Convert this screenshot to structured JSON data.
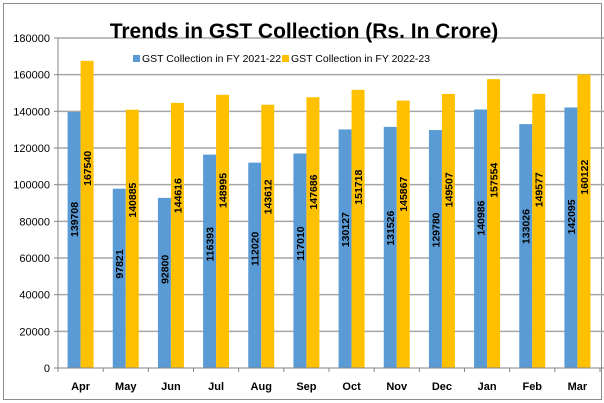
{
  "chart_data": {
    "type": "bar",
    "title": "Trends in GST Collection (Rs. In Crore)",
    "xlabel": "",
    "ylabel": "",
    "ylim": [
      0,
      180000
    ],
    "yticks": [
      0,
      20000,
      40000,
      60000,
      80000,
      100000,
      120000,
      140000,
      160000,
      180000
    ],
    "ytick_labels": [
      "0",
      "20000",
      "40000",
      "60000",
      "80000",
      "100000",
      "120000",
      "140000",
      "160000",
      "180000"
    ],
    "grid": true,
    "legend_position": "top-center",
    "categories": [
      "Apr",
      "May",
      "Jun",
      "Jul",
      "Aug",
      "Sep",
      "Oct",
      "Nov",
      "Dec",
      "Jan",
      "Feb",
      "Mar"
    ],
    "series": [
      {
        "name": "GST Collection in FY 2021-22",
        "color": "#5b9bd5",
        "values": [
          139708,
          97821,
          92800,
          116393,
          112020,
          117010,
          130127,
          131526,
          129780,
          140986,
          133026,
          142095
        ]
      },
      {
        "name": "GST Collection in FY 2022-23",
        "color": "#ffc000",
        "values": [
          167540,
          140885,
          144616,
          148995,
          143612,
          147686,
          151718,
          145867,
          149507,
          157554,
          149577,
          160122
        ]
      }
    ]
  }
}
